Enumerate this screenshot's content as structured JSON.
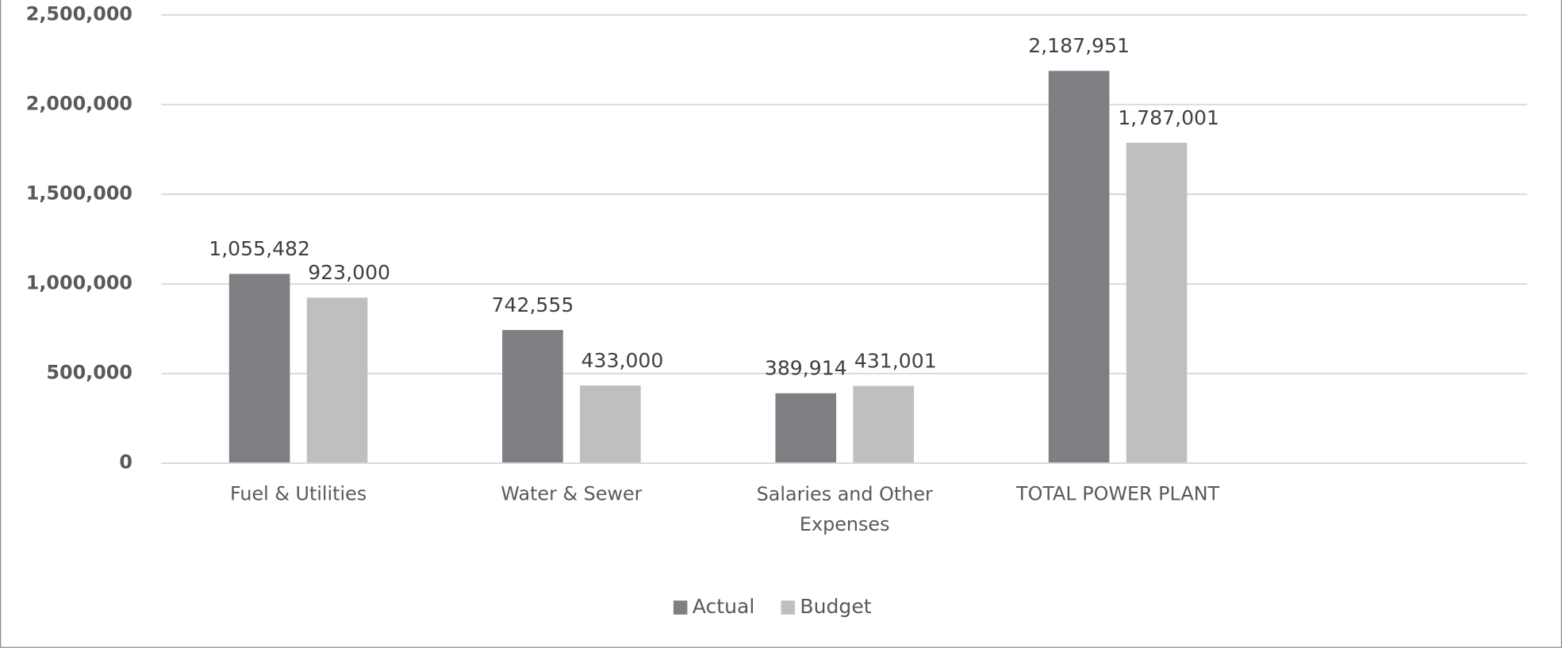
{
  "chart_data": {
    "type": "bar",
    "categories": [
      "Fuel & Utilities",
      "Water & Sewer",
      "Salaries and Other Expenses",
      "TOTAL POWER PLANT",
      null
    ],
    "series": [
      {
        "name": "Actual",
        "color": "#7f7f83",
        "values": [
          1055482,
          742555,
          389914,
          2187951,
          null
        ],
        "value_labels": [
          "1,055,482",
          "742,555",
          "389,914",
          "2,187,951",
          null
        ]
      },
      {
        "name": "Budget",
        "color": "#bfbfc1",
        "values": [
          923000,
          433000,
          431001,
          1787001,
          null
        ],
        "value_labels": [
          "923,000",
          "433,000",
          "431,001",
          "1,787,001",
          null
        ]
      }
    ],
    "ylim": [
      0,
      2500000
    ],
    "yticks": [
      {
        "value": 0,
        "label": "0"
      },
      {
        "value": 500000,
        "label": "500,000"
      },
      {
        "value": 1000000,
        "label": "1,000,000"
      },
      {
        "value": 1500000,
        "label": "1,500,000"
      },
      {
        "value": 2000000,
        "label": "2,000,000"
      },
      {
        "value": 2500000,
        "label": "2,500,000"
      }
    ],
    "grid": true,
    "legend": "bottom"
  }
}
